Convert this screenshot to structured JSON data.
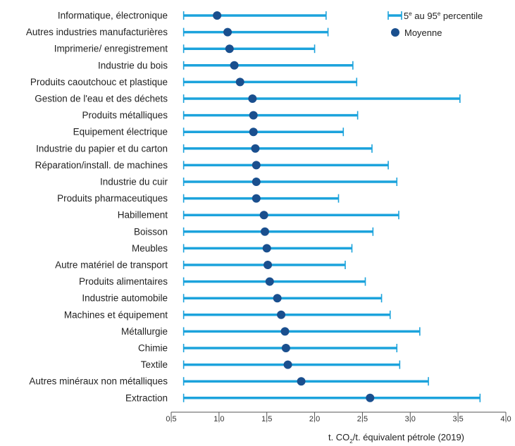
{
  "chart_data": {
    "type": "scatter",
    "orientation": "horizontal",
    "categories": [
      "Informatique, électronique",
      "Autres industries manufacturières",
      "Imprimerie/ enregistrement",
      "Industrie du bois",
      "Produits caoutchouc et plastique",
      "Gestion de l'eau et des déchets",
      "Produits métalliques",
      "Equipement électrique",
      "Industrie du papier et du carton",
      "Réparation/install. de machines",
      "Industrie du cuir",
      "Produits pharmaceutiques",
      "Habillement",
      "Boisson",
      "Meubles",
      "Autre matériel de transport",
      "Produits alimentaires",
      "Industrie automobile",
      "Machines et équipement",
      "Métallurgie",
      "Chimie",
      "Textile",
      "Autres minéraux non métalliques",
      "Extraction"
    ],
    "series": [
      {
        "name": "5e au 95e percentile",
        "low": [
          0.63,
          0.63,
          0.63,
          0.63,
          0.63,
          0.63,
          0.63,
          0.63,
          0.63,
          0.63,
          0.63,
          0.63,
          0.63,
          0.63,
          0.63,
          0.63,
          0.63,
          0.63,
          0.63,
          0.63,
          0.63,
          0.63,
          0.63,
          0.63
        ],
        "high": [
          2.12,
          2.14,
          2.0,
          2.4,
          2.44,
          3.52,
          2.45,
          2.3,
          2.6,
          2.77,
          2.86,
          2.25,
          2.88,
          2.61,
          2.39,
          2.32,
          2.53,
          2.7,
          2.79,
          3.1,
          2.86,
          2.89,
          3.19,
          3.73
        ]
      },
      {
        "name": "Moyenne",
        "values": [
          0.98,
          1.09,
          1.11,
          1.16,
          1.22,
          1.35,
          1.36,
          1.36,
          1.38,
          1.39,
          1.39,
          1.39,
          1.47,
          1.48,
          1.5,
          1.51,
          1.53,
          1.61,
          1.65,
          1.69,
          1.7,
          1.72,
          1.86,
          2.58
        ]
      }
    ],
    "xlim": [
      0.5,
      4.0
    ],
    "xticks": [
      "0,5",
      "1,0",
      "1,5",
      "2,0",
      "2,5",
      "3,0",
      "3,5",
      "4,0"
    ],
    "xtick_values": [
      0.5,
      1.0,
      1.5,
      2.0,
      2.5,
      3.0,
      3.5,
      4.0
    ],
    "xlabel": {
      "pre": "t. CO",
      "sub": "2",
      "post": "/t. équivalent pétrole (2019)"
    },
    "legend": {
      "placement": "top-right",
      "range_label": {
        "pre": "5",
        "sup1": "e",
        "mid": " au 95",
        "sup2": "e",
        "post": " percentile"
      },
      "mean_label": "Moyenne"
    },
    "grid": false,
    "colors": {
      "range": "#1ca3dc",
      "mean": "#1a4f8e",
      "axis": "#555555"
    }
  }
}
